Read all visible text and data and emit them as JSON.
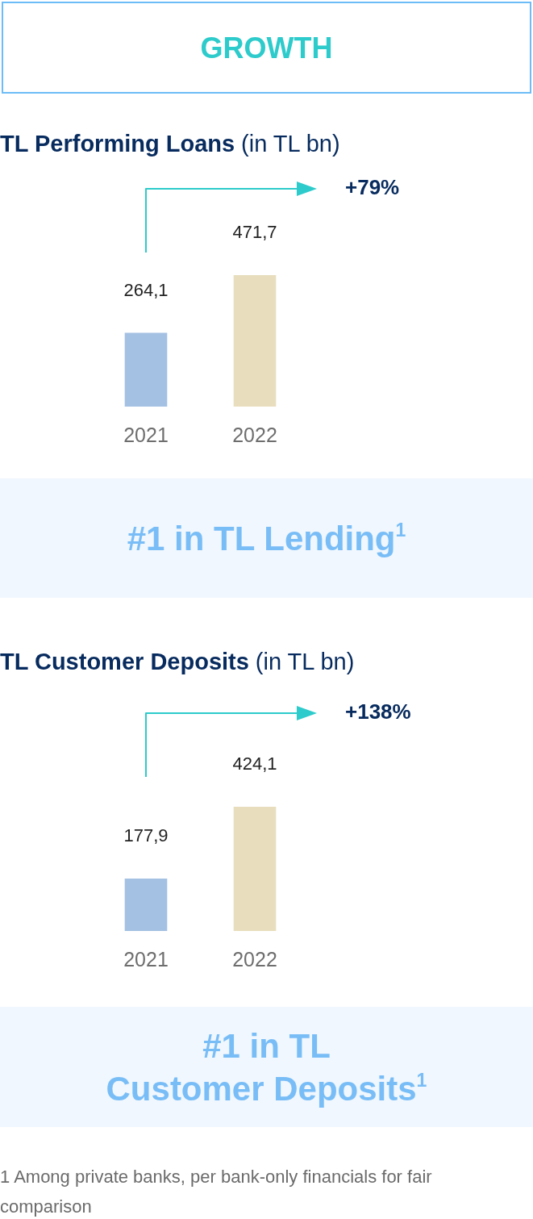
{
  "chart_data": [
    {
      "type": "other",
      "title": "GROWTH"
    },
    {
      "type": "bar",
      "title": "TL Performing Loans",
      "subtitle": "(in TL bn)",
      "categories": [
        "2021",
        "2022"
      ],
      "values": [
        264.1,
        471.7
      ],
      "colors": [
        "#a4c1e3",
        "#e8debe"
      ],
      "value_labels": [
        "264,1",
        "471,7"
      ],
      "annotations": [
        "+79%"
      ]
    },
    {
      "type": "other",
      "title": "#1 in TL Lending$^{1}$"
    },
    {
      "type": "bar",
      "title": "TL Customer Deposits",
      "subtitle": "(in TL bn)",
      "categories": [
        "2021",
        "2022"
      ],
      "values": [
        177.9,
        424.1
      ],
      "colors": [
        "#a4c1e3",
        "#e8debe"
      ],
      "value_labels": [
        "177,9",
        "424,1"
      ],
      "annotations": [
        "+138%"
      ]
    },
    {
      "type": "other",
      "title": "#1 in TL\nCustomer Deposits$^{1}$",
      "annotations": [
        "1 Among private banks, per bank-only financials for fair comparison"
      ]
    }
  ]
}
